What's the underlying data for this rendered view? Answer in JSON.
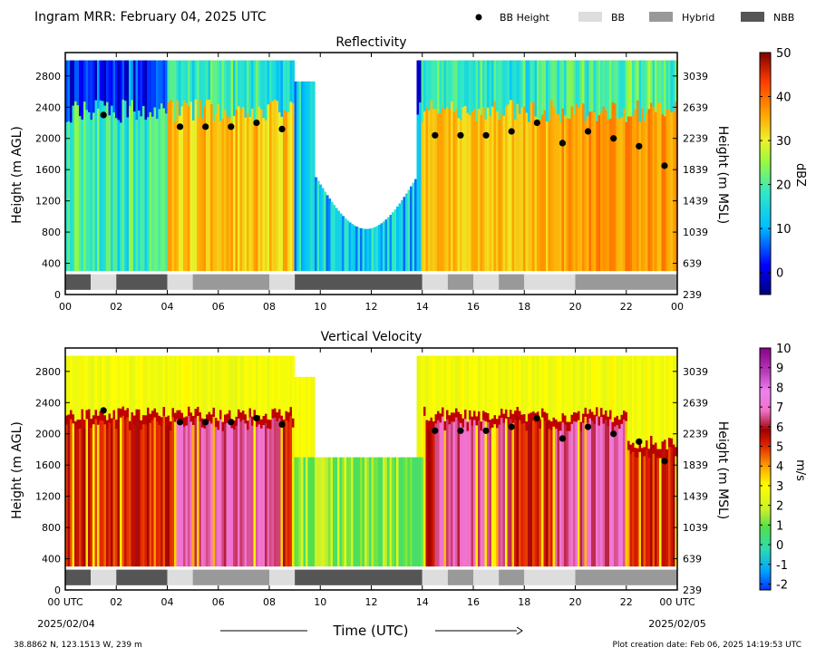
{
  "header": {
    "title": "Ingram MRR:  February 04, 2025 UTC",
    "legend": [
      {
        "label": "BB Height",
        "kind": "dot",
        "color": "#000000"
      },
      {
        "label": "BB",
        "kind": "swatch",
        "color": "#dddddd"
      },
      {
        "label": "Hybrid",
        "kind": "swatch",
        "color": "#999999"
      },
      {
        "label": "NBB",
        "kind": "swatch",
        "color": "#555555"
      }
    ]
  },
  "footer": {
    "location": "38.8862 N, 123.1513 W, 239 m",
    "creation": "Plot creation date: Feb 06, 2025 14:19:53 UTC",
    "xlabel": "Time (UTC)",
    "start_date": "2025/02/04",
    "end_date": "2025/02/05"
  },
  "chart_data": [
    {
      "type": "heatmap",
      "title": "Reflectivity",
      "ylabel": "Height (m AGL)",
      "ylabel_right": "Height (m MSL)",
      "ylim": [
        0,
        3100
      ],
      "xlim": [
        0,
        24
      ],
      "yticks": [
        "0",
        "400",
        "800",
        "1200",
        "1600",
        "2000",
        "2400",
        "2800"
      ],
      "yticks_right": [
        "239",
        "639",
        "1039",
        "1439",
        "1839",
        "2239",
        "2639",
        "3039"
      ],
      "xticks": [
        "00",
        "02",
        "04",
        "06",
        "08",
        "10",
        "12",
        "14",
        "16",
        "18",
        "20",
        "22",
        "00"
      ],
      "colorbar": {
        "label": "dBZ",
        "range": [
          -5,
          50
        ],
        "ticks": [
          "0",
          "10",
          "20",
          "30",
          "40",
          "50"
        ]
      },
      "bb_height": [
        [
          1.5,
          2300
        ],
        [
          4.5,
          2150
        ],
        [
          5.5,
          2150
        ],
        [
          6.5,
          2150
        ],
        [
          7.5,
          2200
        ],
        [
          8.5,
          2120
        ],
        [
          14.5,
          2040
        ],
        [
          15.5,
          2040
        ],
        [
          16.5,
          2040
        ],
        [
          17.5,
          2090
        ],
        [
          18.5,
          2200
        ],
        [
          19.5,
          1940
        ],
        [
          20.5,
          2090
        ],
        [
          21.5,
          2000
        ],
        [
          22.5,
          1900
        ],
        [
          23.5,
          1650
        ]
      ],
      "rain_type": [
        {
          "start": 0,
          "end": 1,
          "type": "NBB"
        },
        {
          "start": 1,
          "end": 2,
          "type": "BB"
        },
        {
          "start": 2,
          "end": 4,
          "type": "NBB"
        },
        {
          "start": 4,
          "end": 5,
          "type": "BB"
        },
        {
          "start": 5,
          "end": 8,
          "type": "Hybrid"
        },
        {
          "start": 8,
          "end": 9,
          "type": "BB"
        },
        {
          "start": 9,
          "end": 14,
          "type": "NBB"
        },
        {
          "start": 14,
          "end": 15,
          "type": "BB"
        },
        {
          "start": 15,
          "end": 16,
          "type": "Hybrid"
        },
        {
          "start": 16,
          "end": 17,
          "type": "BB"
        },
        {
          "start": 17,
          "end": 18,
          "type": "Hybrid"
        },
        {
          "start": 18,
          "end": 20,
          "type": "BB"
        },
        {
          "start": 20,
          "end": 24,
          "type": "Hybrid"
        }
      ]
    },
    {
      "type": "heatmap",
      "title": "Vertical Velocity",
      "ylabel": "Height (m AGL)",
      "ylabel_right": "Height (m MSL)",
      "ylim": [
        0,
        3100
      ],
      "xlim": [
        0,
        24
      ],
      "yticks": [
        "0",
        "400",
        "800",
        "1200",
        "1600",
        "2000",
        "2400",
        "2800"
      ],
      "yticks_right": [
        "239",
        "639",
        "1039",
        "1439",
        "1839",
        "2239",
        "2639",
        "3039"
      ],
      "xticks": [
        "00 UTC",
        "02",
        "04",
        "06",
        "08",
        "10",
        "12",
        "14",
        "16",
        "18",
        "20",
        "22",
        "00 UTC"
      ],
      "colorbar": {
        "label": "m/s",
        "range": [
          -2.3,
          10
        ],
        "ticks": [
          "-2",
          "-1",
          "0",
          "1",
          "2",
          "3",
          "4",
          "5",
          "6",
          "7",
          "8",
          "9",
          "10"
        ]
      },
      "bb_height": [
        [
          1.5,
          2300
        ],
        [
          4.5,
          2150
        ],
        [
          5.5,
          2150
        ],
        [
          6.5,
          2150
        ],
        [
          7.5,
          2200
        ],
        [
          8.5,
          2120
        ],
        [
          14.5,
          2040
        ],
        [
          15.5,
          2040
        ],
        [
          16.5,
          2040
        ],
        [
          17.5,
          2090
        ],
        [
          18.5,
          2200
        ],
        [
          19.5,
          1940
        ],
        [
          20.5,
          2090
        ],
        [
          21.5,
          2000
        ],
        [
          22.5,
          1900
        ],
        [
          23.5,
          1650
        ]
      ],
      "rain_type": [
        {
          "start": 0,
          "end": 1,
          "type": "NBB"
        },
        {
          "start": 1,
          "end": 2,
          "type": "BB"
        },
        {
          "start": 2,
          "end": 4,
          "type": "NBB"
        },
        {
          "start": 4,
          "end": 5,
          "type": "BB"
        },
        {
          "start": 5,
          "end": 8,
          "type": "Hybrid"
        },
        {
          "start": 8,
          "end": 9,
          "type": "BB"
        },
        {
          "start": 9,
          "end": 14,
          "type": "NBB"
        },
        {
          "start": 14,
          "end": 15,
          "type": "BB"
        },
        {
          "start": 15,
          "end": 16,
          "type": "Hybrid"
        },
        {
          "start": 16,
          "end": 17,
          "type": "BB"
        },
        {
          "start": 17,
          "end": 18,
          "type": "Hybrid"
        },
        {
          "start": 18,
          "end": 20,
          "type": "BB"
        },
        {
          "start": 20,
          "end": 24,
          "type": "Hybrid"
        }
      ]
    }
  ],
  "colors": {
    "BB": "#dddddd",
    "Hybrid": "#999999",
    "NBB": "#555555"
  }
}
